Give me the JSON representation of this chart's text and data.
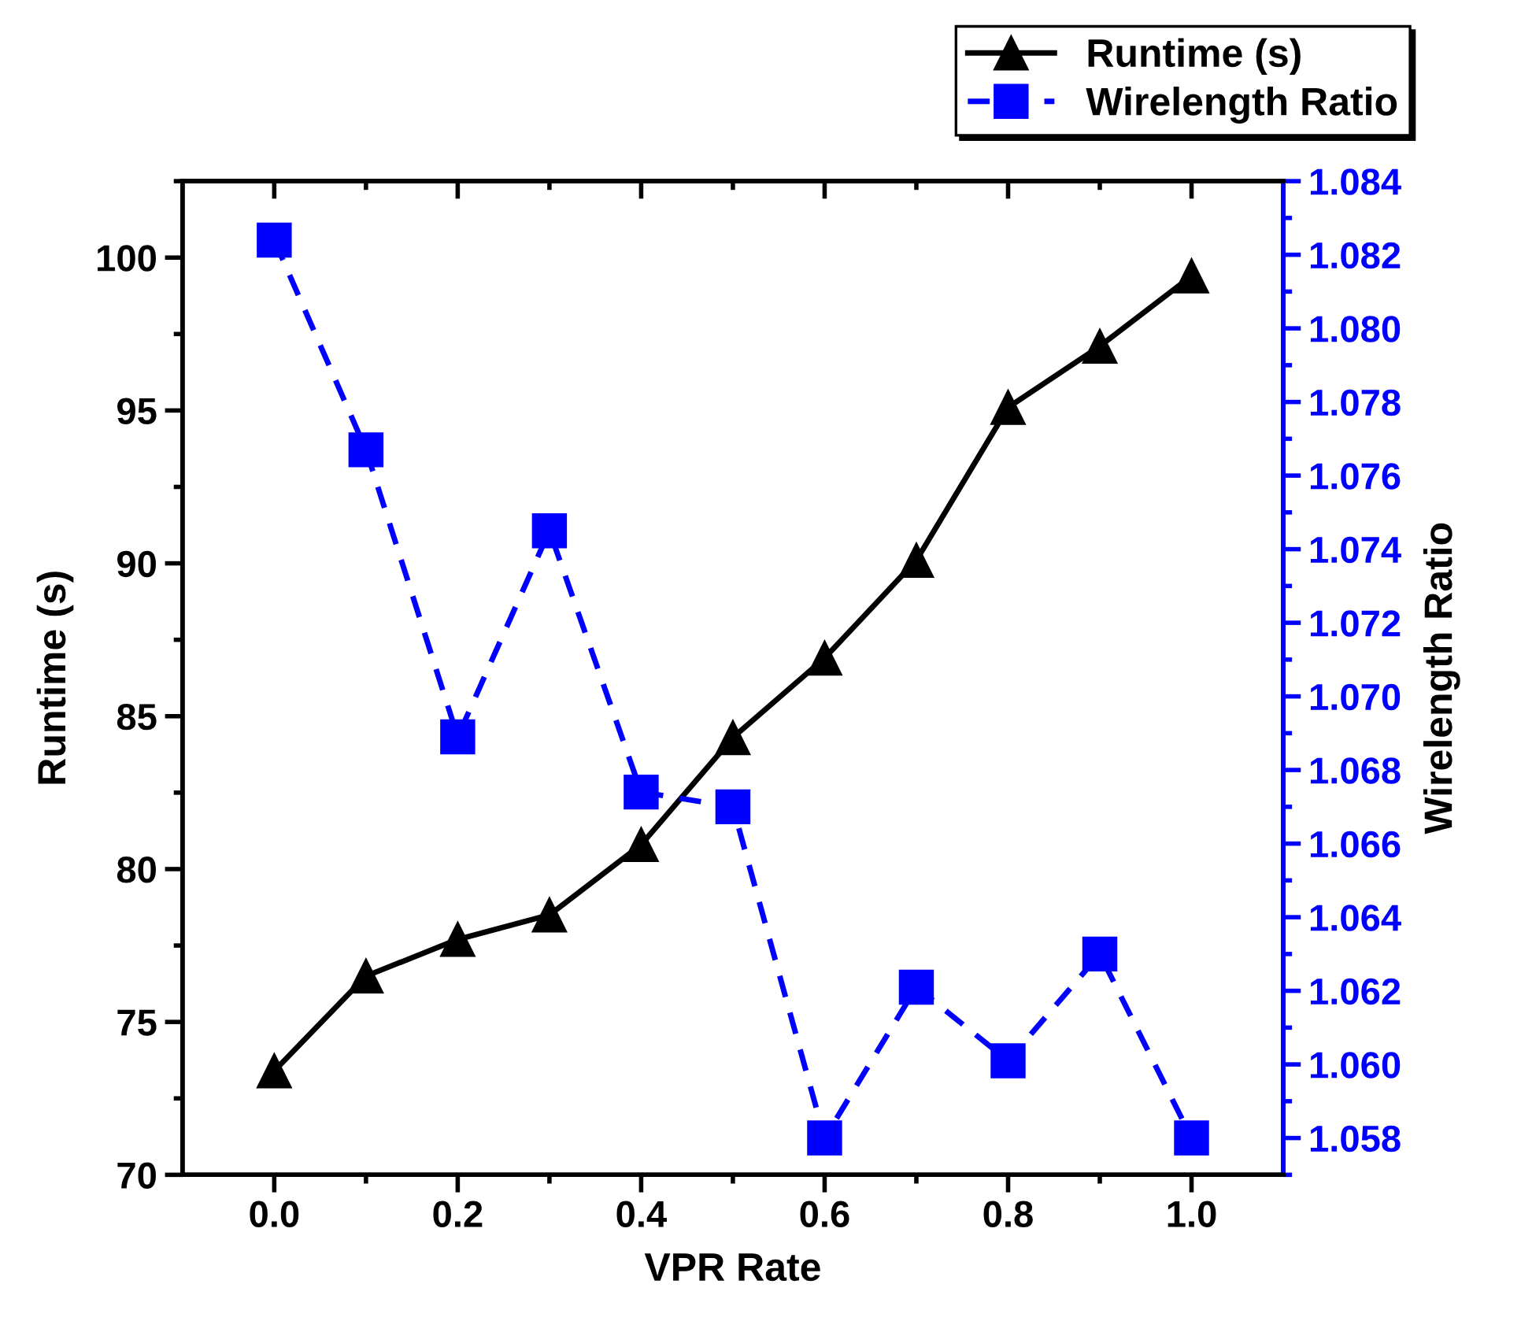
{
  "chart_data": {
    "type": "line",
    "xlabel": "VPR Rate",
    "ylabel": "Runtime (s)",
    "y2label": "Wirelength Ratio",
    "x": [
      0.0,
      0.1,
      0.2,
      0.3,
      0.4,
      0.5,
      0.6,
      0.7,
      0.8,
      0.9,
      1.0
    ],
    "series": [
      {
        "name": "Runtime (s)",
        "color": "#000000",
        "marker": "triangle",
        "line_style": "solid",
        "values": [
          73.4,
          76.5,
          77.7,
          78.5,
          80.8,
          84.3,
          86.9,
          90.1,
          95.1,
          97.1,
          99.4
        ]
      },
      {
        "name": "Wirelength Ratio",
        "color": "#0000ff",
        "marker": "square",
        "line_style": "dashed",
        "axis": "y2",
        "values": [
          1.0824,
          1.0767,
          1.0689,
          1.0745,
          1.0674,
          1.067,
          1.058,
          1.0621,
          1.0601,
          1.063,
          1.058
        ]
      }
    ],
    "xlim": [
      -0.1,
      1.1
    ],
    "xticks": [
      {
        "value": 0,
        "label": "0.0"
      },
      {
        "value": 0.1,
        "label": null
      },
      {
        "value": 0.2,
        "label": "0.2"
      },
      {
        "value": 0.3,
        "label": null
      },
      {
        "value": 0.4,
        "label": "0.4"
      },
      {
        "value": 0.5,
        "label": null
      },
      {
        "value": 0.6,
        "label": "0.6"
      },
      {
        "value": 0.7,
        "label": null
      },
      {
        "value": 0.8,
        "label": "0.8"
      },
      {
        "value": 0.9,
        "label": null
      },
      {
        "value": 1.0,
        "label": "1.0"
      }
    ],
    "ylim": [
      70,
      102.5
    ],
    "yticks": [
      70,
      {
        "value": 72.5,
        "label": null
      },
      75,
      {
        "value": 77.5,
        "label": null
      },
      80,
      {
        "value": 82.5,
        "label": null
      },
      85,
      {
        "value": 87.5,
        "label": null
      },
      90,
      {
        "value": 92.5,
        "label": null
      },
      95,
      {
        "value": 97.5,
        "label": null
      },
      100,
      {
        "value": 102.5,
        "label": null
      }
    ],
    "y2lim": [
      1.057,
      1.084
    ],
    "y2ticks": [
      {
        "value": 1.057,
        "label": null
      },
      {
        "value": 1.058,
        "label": "1.058"
      },
      {
        "value": 1.059,
        "label": null
      },
      {
        "value": 1.06,
        "label": "1.060"
      },
      {
        "value": 1.061,
        "label": null
      },
      {
        "value": 1.062,
        "label": "1.062"
      },
      {
        "value": 1.063,
        "label": null
      },
      {
        "value": 1.064,
        "label": "1.064"
      },
      {
        "value": 1.065,
        "label": null
      },
      {
        "value": 1.066,
        "label": "1.066"
      },
      {
        "value": 1.067,
        "label": null
      },
      {
        "value": 1.068,
        "label": "1.068"
      },
      {
        "value": 1.069,
        "label": null
      },
      {
        "value": 1.07,
        "label": "1.070"
      },
      {
        "value": 1.071,
        "label": null
      },
      {
        "value": 1.072,
        "label": "1.072"
      },
      {
        "value": 1.073,
        "label": null
      },
      {
        "value": 1.074,
        "label": "1.074"
      },
      {
        "value": 1.075,
        "label": null
      },
      {
        "value": 1.076,
        "label": "1.076"
      },
      {
        "value": 1.077,
        "label": null
      },
      {
        "value": 1.078,
        "label": "1.078"
      },
      {
        "value": 1.079,
        "label": null
      },
      {
        "value": 1.08,
        "label": "1.080"
      },
      {
        "value": 1.081,
        "label": null
      },
      {
        "value": 1.082,
        "label": "1.082"
      },
      {
        "value": 1.083,
        "label": null
      },
      {
        "value": 1.084,
        "label": "1.084"
      }
    ],
    "grid": false,
    "legend": "top right"
  }
}
